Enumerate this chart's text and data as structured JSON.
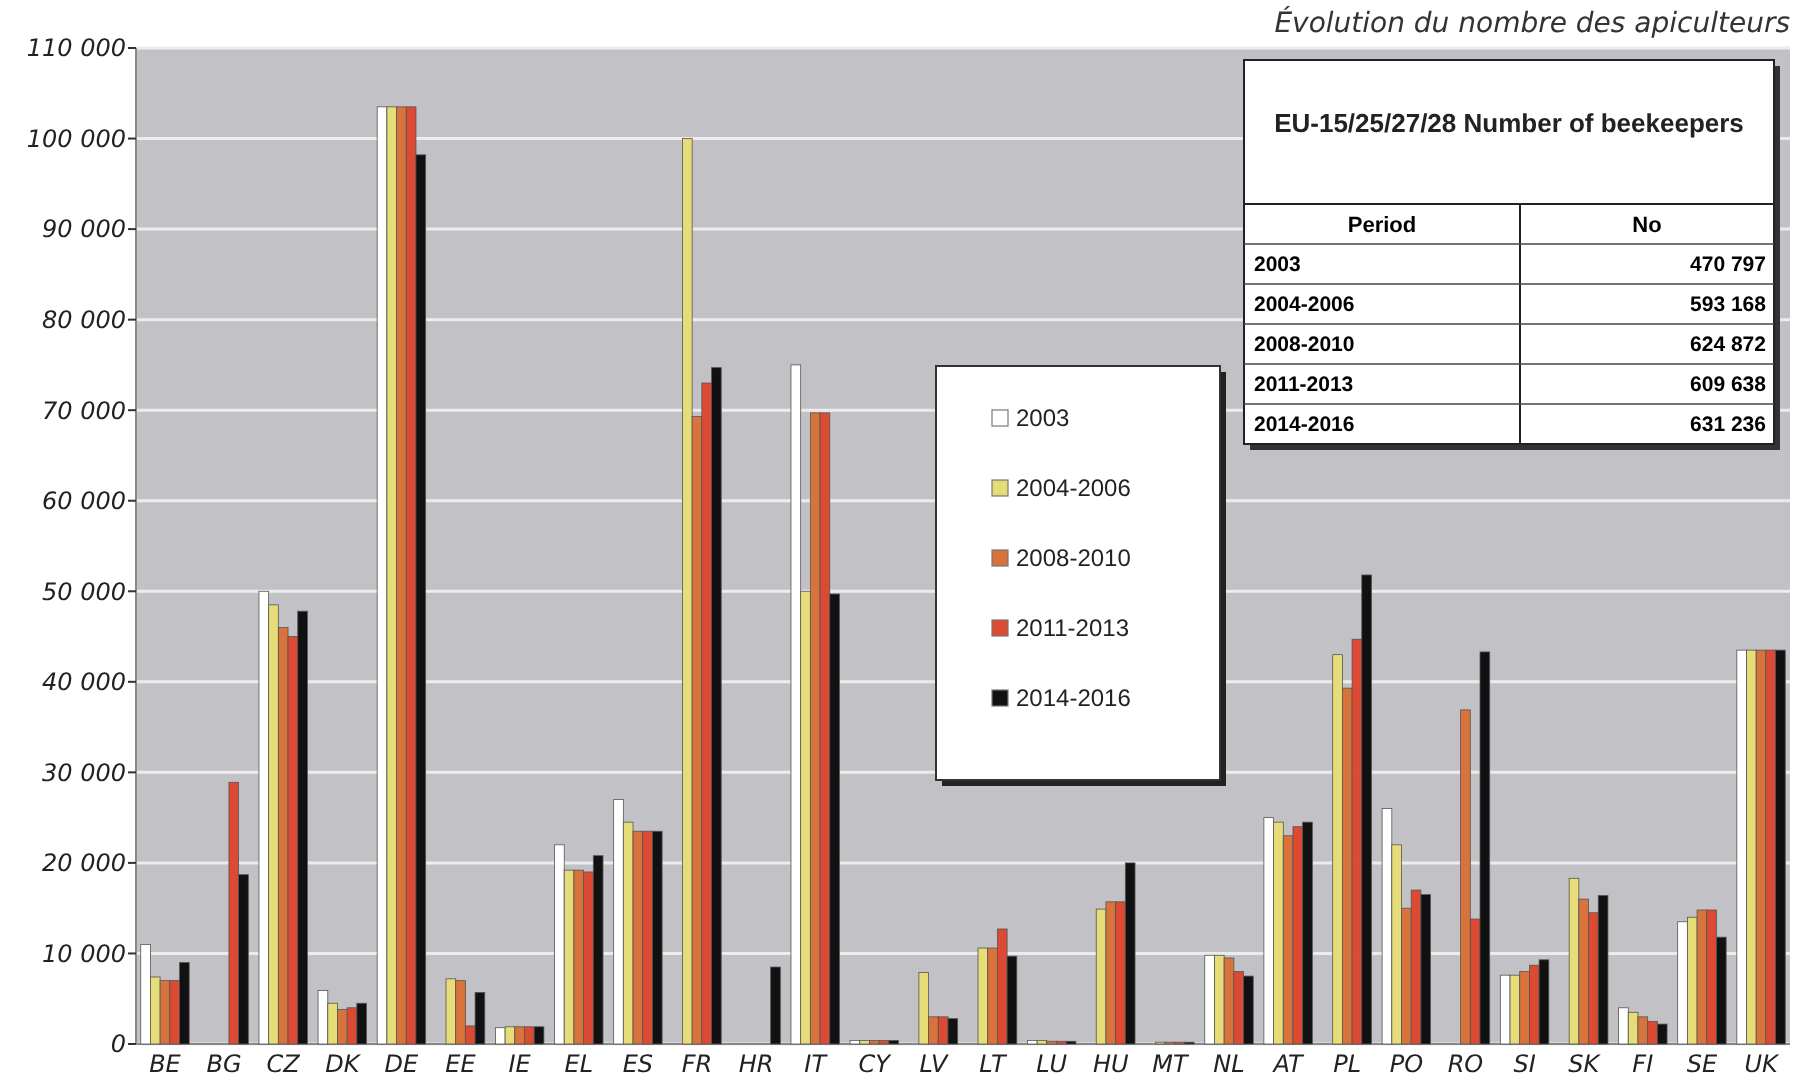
{
  "chart_data": [
    {
      "type": "bar",
      "title": "Évolution du nombre des apiculteurs",
      "categories": [
        "BE",
        "BG",
        "CZ",
        "DK",
        "DE",
        "EE",
        "IE",
        "EL",
        "ES",
        "FR",
        "HR",
        "IT",
        "CY",
        "LV",
        "LT",
        "LU",
        "HU",
        "MT",
        "NL",
        "AT",
        "PL",
        "PO",
        "RO",
        "SI",
        "SK",
        "FI",
        "SE",
        "UK"
      ],
      "series": [
        {
          "name": "2003",
          "color": "#ffffff",
          "values": [
            11000,
            null,
            50000,
            5900,
            103500,
            null,
            1800,
            22000,
            27000,
            null,
            null,
            75000,
            400,
            null,
            null,
            400,
            null,
            null,
            9800,
            25000,
            null,
            26000,
            null,
            7600,
            null,
            4000,
            13500,
            43500
          ]
        },
        {
          "name": "2004-2006",
          "color": "#e6dc78",
          "values": [
            7400,
            null,
            48500,
            4500,
            103500,
            7200,
            1900,
            19200,
            24500,
            100000,
            null,
            50000,
            400,
            7900,
            10600,
            400,
            14900,
            200,
            9800,
            24500,
            43000,
            22000,
            null,
            7600,
            18300,
            3500,
            14000,
            43500
          ]
        },
        {
          "name": "2008-2010",
          "color": "#d8733c",
          "values": [
            7000,
            null,
            46000,
            3800,
            103500,
            7000,
            1900,
            19200,
            23500,
            69300,
            null,
            69700,
            400,
            3000,
            10600,
            300,
            15700,
            200,
            9500,
            23000,
            39300,
            15000,
            36900,
            8000,
            16000,
            3000,
            14800,
            43500
          ]
        },
        {
          "name": "2011-2013",
          "color": "#dc4a34",
          "values": [
            7000,
            28900,
            45000,
            4000,
            103500,
            2000,
            1900,
            19000,
            23500,
            73000,
            null,
            69700,
            400,
            3000,
            12700,
            300,
            15700,
            200,
            8000,
            24000,
            44700,
            17000,
            13800,
            8700,
            14500,
            2500,
            14800,
            43500
          ]
        },
        {
          "name": "2014-2016",
          "color": "#111111",
          "values": [
            9000,
            18700,
            47800,
            4500,
            98200,
            5700,
            1900,
            20800,
            23500,
            74700,
            8500,
            49700,
            400,
            2800,
            9700,
            300,
            20000,
            200,
            7500,
            24500,
            51800,
            16500,
            43300,
            9300,
            16400,
            2200,
            11800,
            43500
          ]
        }
      ],
      "ylim": [
        0,
        110000
      ],
      "yticks": [
        0,
        {
          "value": 10000,
          "label": "10 000"
        },
        {
          "value": 20000,
          "label": "20 000"
        },
        {
          "value": 30000,
          "label": "30 000"
        },
        {
          "value": 40000,
          "label": "40 000"
        },
        {
          "value": 50000,
          "label": "50 000"
        },
        {
          "value": 60000,
          "label": "60 000"
        },
        {
          "value": 70000,
          "label": "70 000"
        },
        {
          "value": 80000,
          "label": "80 000"
        },
        {
          "value": 90000,
          "label": "90 000"
        },
        {
          "value": 100000,
          "label": "100 000"
        },
        {
          "value": 110000,
          "label": "110 000"
        }
      ],
      "grid": "y",
      "legend": "center"
    },
    {
      "type": "other",
      "title": "EU-15/25/27/28  Number of beekeepers",
      "xlabel": "Period",
      "ylabel": "No",
      "categories": [
        "2003",
        "2004-2006",
        "2008-2010",
        "2011-2013",
        "2014-2016"
      ],
      "values": [
        470797,
        593168,
        624872,
        609638,
        631236
      ],
      "data_labels": true
    }
  ]
}
